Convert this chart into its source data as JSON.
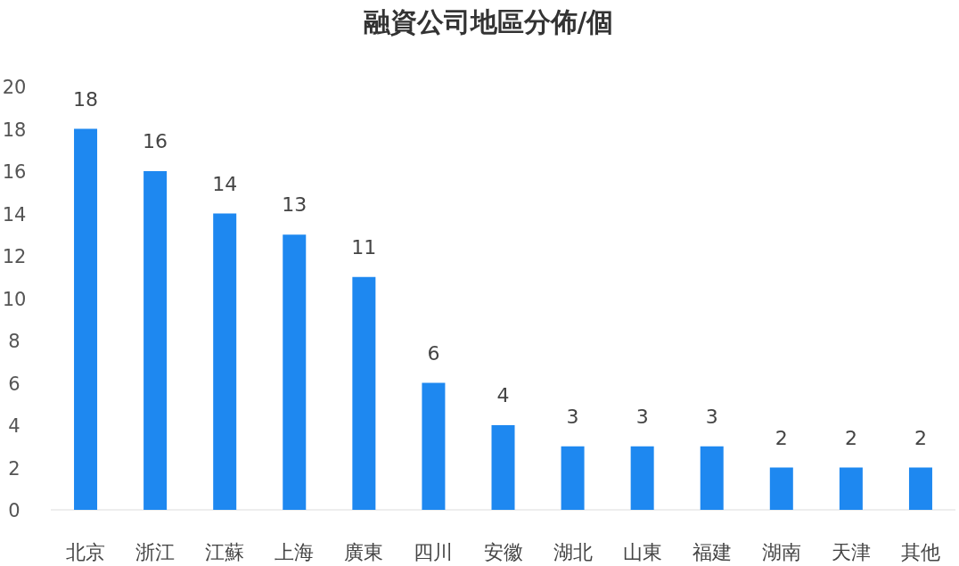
{
  "chart_data": {
    "type": "bar",
    "title": "融資公司地區分佈/個",
    "categories": [
      "北京",
      "浙江",
      "江蘇",
      "上海",
      "廣東",
      "四川",
      "安徽",
      "湖北",
      "山東",
      "福建",
      "湖南",
      "天津",
      "其他"
    ],
    "values": [
      18,
      16,
      14,
      13,
      11,
      6,
      4,
      3,
      3,
      3,
      2,
      2,
      2
    ],
    "color": "#1e88f0",
    "ylim": [
      0,
      20
    ],
    "yticks": [
      0,
      2,
      4,
      6,
      8,
      10,
      12,
      14,
      16,
      18,
      20
    ],
    "grid": false,
    "data_labels": true
  }
}
